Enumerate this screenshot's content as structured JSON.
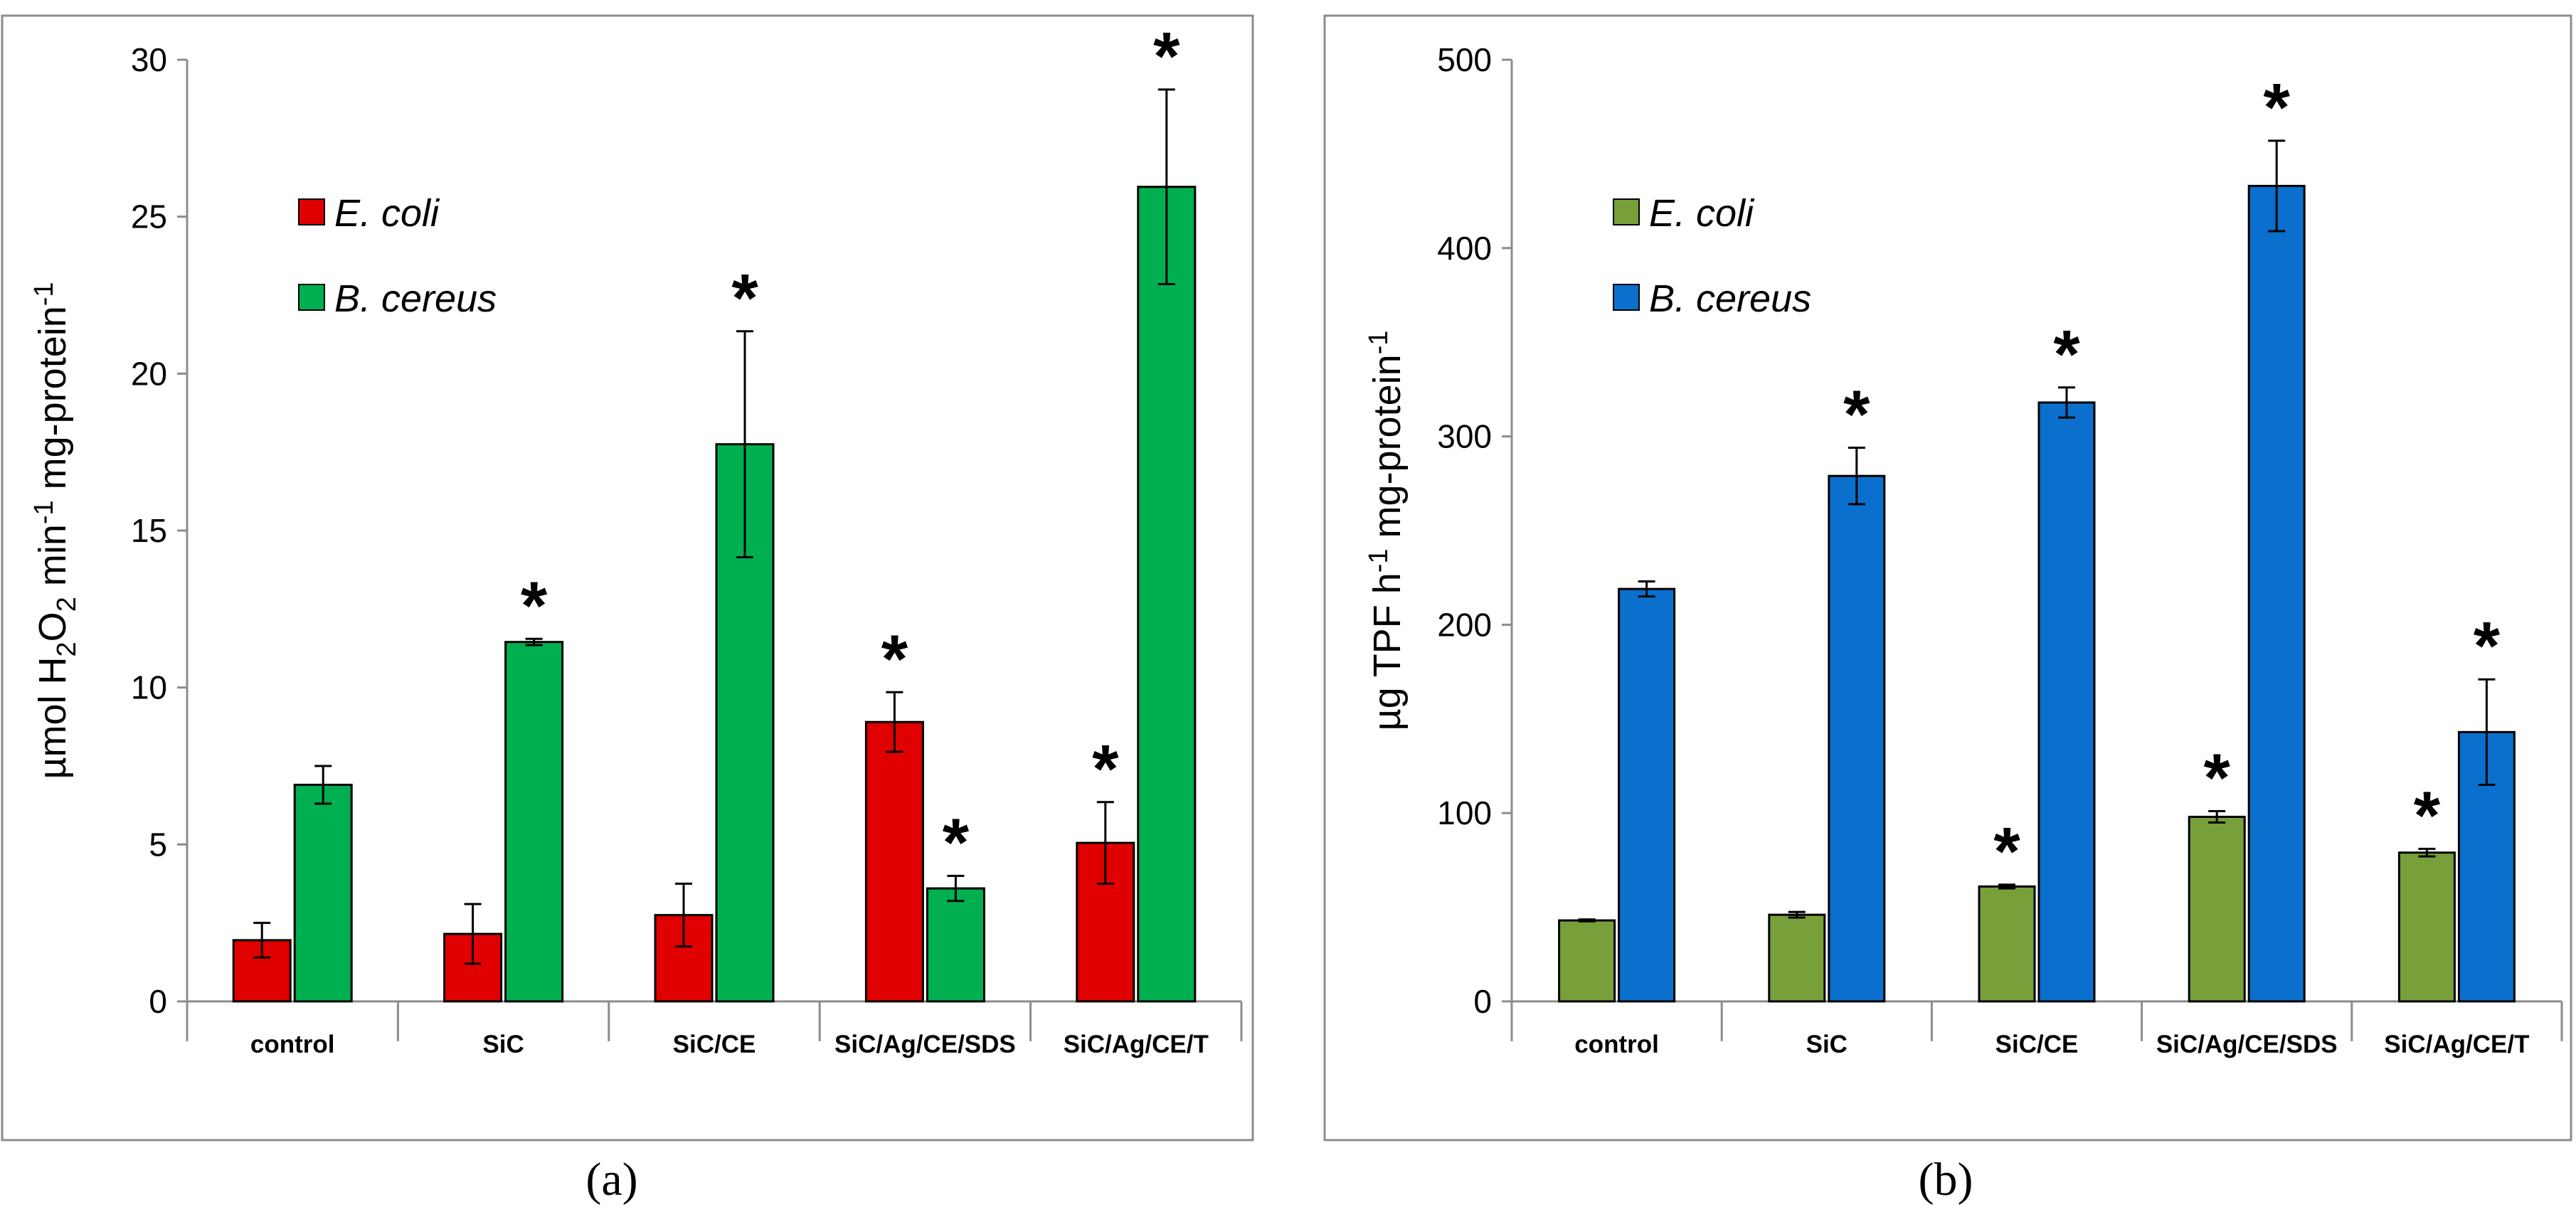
{
  "chart_data": [
    {
      "type": "bar",
      "panel_label": "(a)",
      "ylabel": {
        "prefix": "µmol H",
        "sub1": "2",
        "mid1": "O",
        "sub2": "2",
        "mid2": " min",
        "sup1": "-1",
        "mid3": " mg-protein",
        "sup2": "-1"
      },
      "ylim": [
        0,
        30
      ],
      "yticks": [
        0,
        5,
        10,
        15,
        20,
        25,
        30
      ],
      "categories": [
        "control",
        "SiC",
        "SiC/CE",
        "SiC/Ag/CE/SDS",
        "SiC/Ag/CE/T"
      ],
      "legend_position": "top-left",
      "series": [
        {
          "name": "E. coli",
          "color": "#e00000",
          "values": [
            1.95,
            2.15,
            2.75,
            8.9,
            5.05
          ],
          "errors": [
            0.55,
            0.95,
            1.0,
            0.95,
            1.3
          ],
          "significant": [
            false,
            false,
            false,
            true,
            true
          ]
        },
        {
          "name": "B. cereus",
          "color": "#00b050",
          "values": [
            6.9,
            11.45,
            17.75,
            3.6,
            25.95
          ],
          "errors": [
            0.6,
            0.1,
            3.6,
            0.4,
            3.1
          ],
          "significant": [
            false,
            true,
            true,
            true,
            true
          ]
        }
      ]
    },
    {
      "type": "bar",
      "panel_label": "(b)",
      "ylabel": {
        "prefix": "µg TPF h",
        "sup1": "-1",
        "mid1": " mg-protein",
        "sup2": "-1"
      },
      "ylim": [
        0,
        500
      ],
      "yticks": [
        0,
        100,
        200,
        300,
        400,
        500
      ],
      "categories": [
        "control",
        "SiC",
        "SiC/CE",
        "SiC/Ag/CE/SDS",
        "SiC/Ag/CE/T"
      ],
      "legend_position": "top-left",
      "series": [
        {
          "name": "E. coli",
          "color": "#77a03a",
          "values": [
            43,
            46,
            61,
            98,
            79
          ],
          "errors": [
            0.5,
            1.5,
            1.0,
            3.0,
            2.0
          ],
          "significant": [
            false,
            false,
            true,
            true,
            true
          ]
        },
        {
          "name": "B. cereus",
          "color": "#0a6fcd",
          "values": [
            219,
            279,
            318,
            433,
            143
          ],
          "errors": [
            4,
            15,
            8,
            24,
            28
          ],
          "significant": [
            false,
            true,
            true,
            true,
            true
          ]
        }
      ]
    }
  ],
  "significance_marker": "*"
}
